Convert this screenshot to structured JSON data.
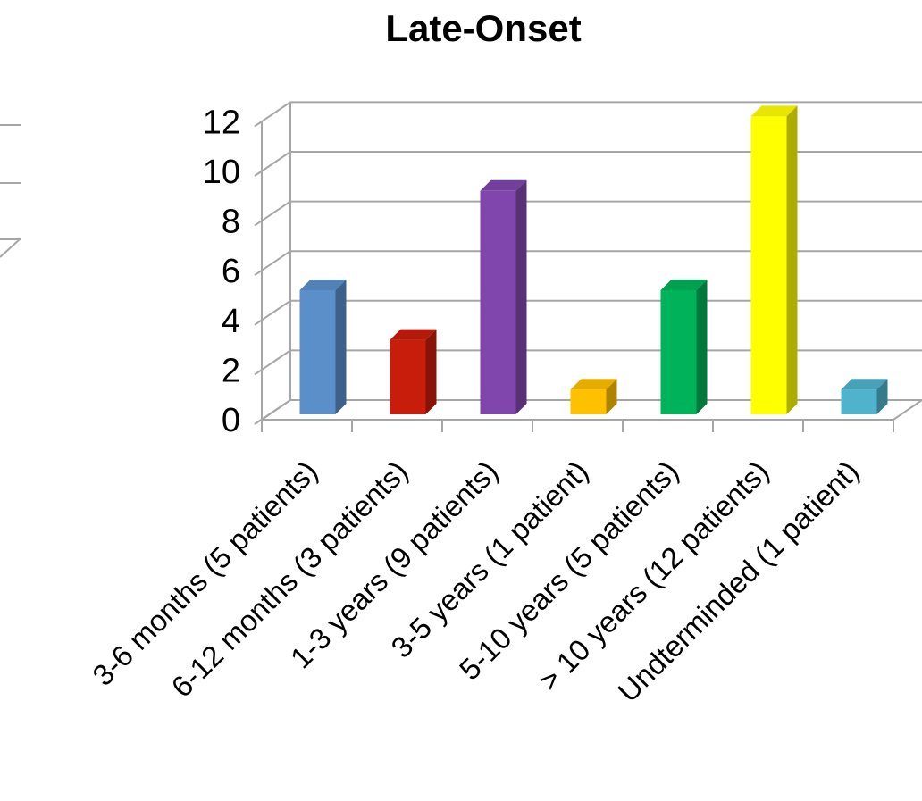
{
  "chart_data": {
    "type": "bar",
    "title": "Late-Onset",
    "categories": [
      "3-6 months (5 patients)",
      "6-12 months (3 patients)",
      "1-3 years (9 patients)",
      "3-5 years (1 patient)",
      "5-10 years (5 patients)",
      "> 10 years (12 patients)",
      "Undterminded (1 patient)"
    ],
    "values": [
      5,
      3,
      9,
      1,
      5,
      12,
      1
    ],
    "colors": [
      "#5b8fc9",
      "#c81d0a",
      "#8046ad",
      "#ffc000",
      "#00b25a",
      "#ffff00",
      "#4fb3cd"
    ],
    "yticks": [
      "0",
      "2",
      "4",
      "6",
      "8",
      "10",
      "12"
    ],
    "ylim": [
      0,
      12
    ],
    "grid": true,
    "style": "3d-column",
    "legend": "none"
  }
}
